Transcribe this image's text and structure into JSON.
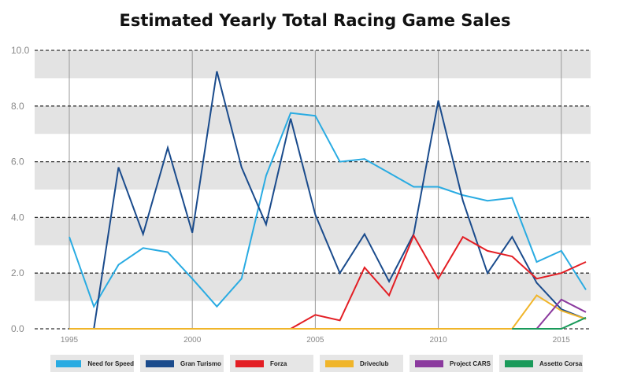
{
  "chart_data": {
    "type": "line",
    "title": "Estimated Yearly Total Racing Game Sales",
    "xlabel": "",
    "ylabel": "",
    "xlim": [
      1995,
      2016
    ],
    "ylim": [
      0,
      10
    ],
    "x_ticks": [
      "1995",
      "2000",
      "2005",
      "2010",
      "2015"
    ],
    "y_ticks": [
      "0.0",
      "2.0",
      "4.0",
      "6.0",
      "8.0",
      "10.0"
    ],
    "grid": true,
    "legend_position": "bottom",
    "series": [
      {
        "name": "Need for Speed",
        "color": "#29abe2",
        "x": [
          1995,
          1996,
          1997,
          1998,
          1999,
          2000,
          2001,
          2002,
          2003,
          2004,
          2005,
          2006,
          2007,
          2008,
          2009,
          2010,
          2011,
          2012,
          2013,
          2014,
          2015,
          2016
        ],
        "y": [
          3.3,
          0.8,
          2.3,
          2.9,
          2.75,
          1.8,
          0.8,
          1.8,
          5.5,
          7.75,
          7.65,
          6.0,
          6.1,
          5.6,
          5.1,
          5.1,
          4.8,
          4.6,
          4.7,
          2.4,
          2.8,
          1.4
        ]
      },
      {
        "name": "Gran Turismo",
        "color": "#1a4b8c",
        "x": [
          1995,
          1996,
          1997,
          1998,
          1999,
          2000,
          2001,
          2002,
          2003,
          2004,
          2005,
          2006,
          2007,
          2008,
          2009,
          2010,
          2011,
          2012,
          2013,
          2014,
          2015,
          2016
        ],
        "y": [
          0,
          0,
          5.8,
          3.4,
          6.5,
          3.45,
          9.25,
          5.8,
          3.75,
          7.55,
          4.1,
          2.0,
          3.4,
          1.7,
          3.4,
          8.2,
          4.6,
          2.0,
          3.3,
          1.65,
          0.7,
          0.35
        ]
      },
      {
        "name": "Forza",
        "color": "#e31e24",
        "x": [
          1995,
          1996,
          1997,
          1998,
          1999,
          2000,
          2001,
          2002,
          2003,
          2004,
          2005,
          2006,
          2007,
          2008,
          2009,
          2010,
          2011,
          2012,
          2013,
          2014,
          2015,
          2016
        ],
        "y": [
          0,
          0,
          0,
          0,
          0,
          0,
          0,
          0,
          0,
          0,
          0.5,
          0.3,
          2.2,
          1.2,
          3.35,
          1.8,
          3.3,
          2.8,
          2.6,
          1.8,
          2.0,
          2.4
        ]
      },
      {
        "name": "Driveclub",
        "color": "#f0b52a",
        "x": [
          1995,
          1996,
          1997,
          1998,
          1999,
          2000,
          2001,
          2002,
          2003,
          2004,
          2005,
          2006,
          2007,
          2008,
          2009,
          2010,
          2011,
          2012,
          2013,
          2014,
          2015,
          2016
        ],
        "y": [
          0,
          0,
          0,
          0,
          0,
          0,
          0,
          0,
          0,
          0,
          0,
          0,
          0,
          0,
          0,
          0,
          0,
          0,
          0,
          1.2,
          0.65,
          0.35
        ]
      },
      {
        "name": "Project CARS",
        "color": "#8b3a9e",
        "x": [
          2013,
          2014,
          2015,
          2016
        ],
        "y": [
          0,
          0,
          1.05,
          0.6
        ]
      },
      {
        "name": "Assetto Corsa",
        "color": "#1a9a5a",
        "x": [
          2013,
          2014,
          2015,
          2016
        ],
        "y": [
          0,
          0,
          0,
          0.4
        ]
      }
    ]
  }
}
